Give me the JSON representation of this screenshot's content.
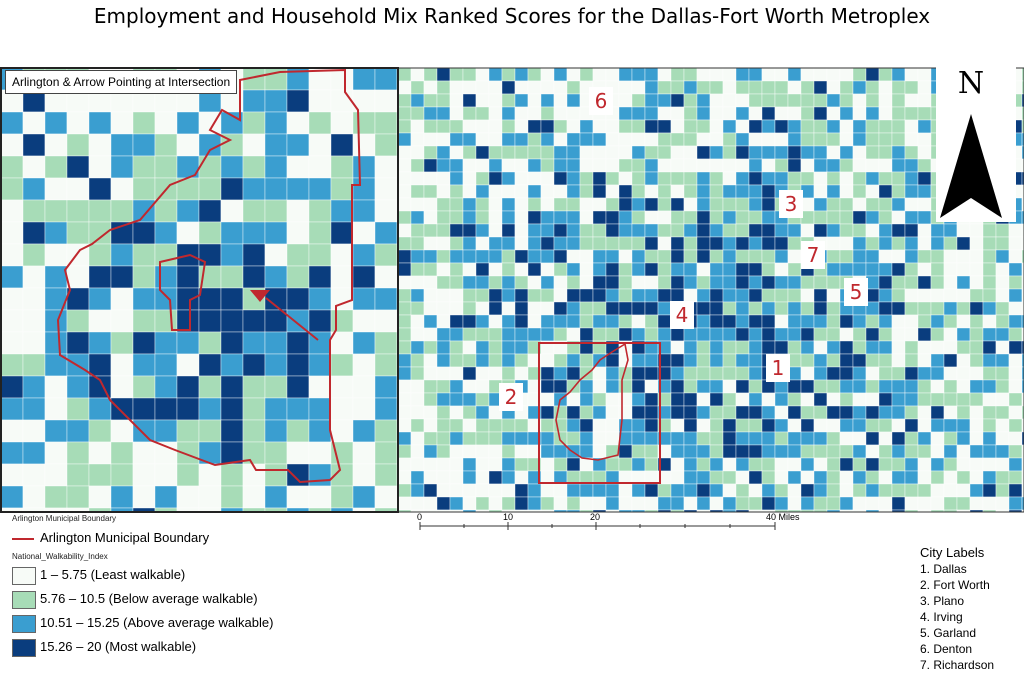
{
  "title": "Employment and Household Mix Ranked Scores for the Dallas-Fort Worth Metroplex",
  "inset": {
    "label": "Arlington & Arrow Pointing at Intersection"
  },
  "north_arrow": {
    "letter": "N"
  },
  "city_markers": [
    "6",
    "3",
    "7",
    "5",
    "4",
    "1",
    "2"
  ],
  "legend": {
    "boundary_small": "Arlington Municipal Boundary",
    "boundary_label": "Arlington Municipal Boundary",
    "index_title": "National_Walkability_Index",
    "classes": [
      {
        "label": "1 – 5.75 (Least walkable)",
        "color": "#f7fbf7"
      },
      {
        "label": "5.76 – 10.5 (Below average walkable)",
        "color": "#a7dcb7"
      },
      {
        "label": "10.51 – 15.25 (Above average walkable)",
        "color": "#3a9ed0"
      },
      {
        "label": "15.26 – 20 (Most walkable)",
        "color": "#0a3d7e"
      }
    ]
  },
  "scale_bar": {
    "labels": [
      "0",
      "10",
      "20",
      "40 Miles"
    ]
  },
  "city_labels": {
    "heading": "City Labels",
    "items": [
      "1. Dallas",
      "2. Fort Worth",
      "3. Plano",
      "4. Irving",
      "5. Garland",
      "6. Denton",
      "7. Richardson"
    ]
  },
  "colors": {
    "boundary": "#c0282e",
    "frame": "#333333"
  }
}
